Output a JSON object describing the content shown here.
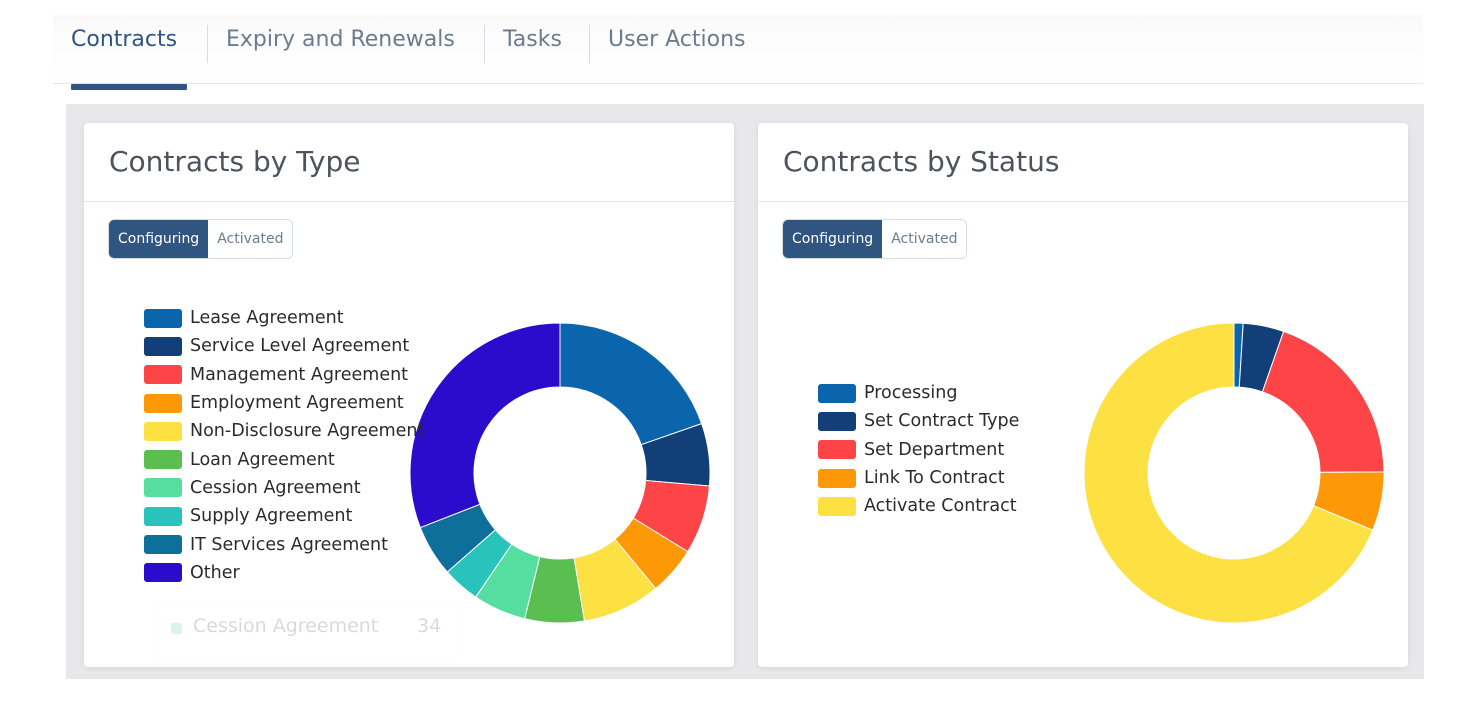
{
  "tabs": {
    "items": [
      {
        "label": "Contracts",
        "active": true
      },
      {
        "label": "Expiry and Renewals",
        "active": false
      },
      {
        "label": "Tasks",
        "active": false
      },
      {
        "label": "User Actions",
        "active": false
      }
    ]
  },
  "cards": [
    {
      "title": "Contracts by Type",
      "toggle": {
        "configuring": "Configuring",
        "activated": "Activated",
        "selected": "Configuring"
      },
      "tooltip": {
        "label": "Cession Agreement",
        "value": "34",
        "color": "#55dea0"
      },
      "chart_data": {
        "type": "pie",
        "donut": true,
        "legend_position": "left",
        "categories": [
          "Lease Agreement",
          "Service Level Agreement",
          "Management Agreement",
          "Employment Agreement",
          "Non-Disclosure Agreement",
          "Loan Agreement",
          "Cession Agreement",
          "Supply Agreement",
          "IT Services Agreement",
          "Other"
        ],
        "values": [
          117,
          40,
          44,
          31,
          50,
          38,
          34,
          24,
          33,
          184
        ],
        "colors": [
          "#0b65ac",
          "#123f78",
          "#fd4447",
          "#fd9807",
          "#fde042",
          "#5bbe51",
          "#55dea0",
          "#2ac3bb",
          "#0e6f9a",
          "#2b0ccd"
        ]
      }
    },
    {
      "title": "Contracts by Status",
      "toggle": {
        "configuring": "Configuring",
        "activated": "Activated",
        "selected": "Configuring"
      },
      "chart_data": {
        "type": "pie",
        "donut": true,
        "legend_position": "left",
        "categories": [
          "Processing",
          "Set Contract Type",
          "Set Department",
          "Link To Contract",
          "Activate Contract"
        ],
        "values": [
          2,
          9,
          40,
          13,
          141
        ],
        "colors": [
          "#0b65ac",
          "#123f78",
          "#fd4447",
          "#fd9807",
          "#fde042"
        ]
      }
    }
  ]
}
